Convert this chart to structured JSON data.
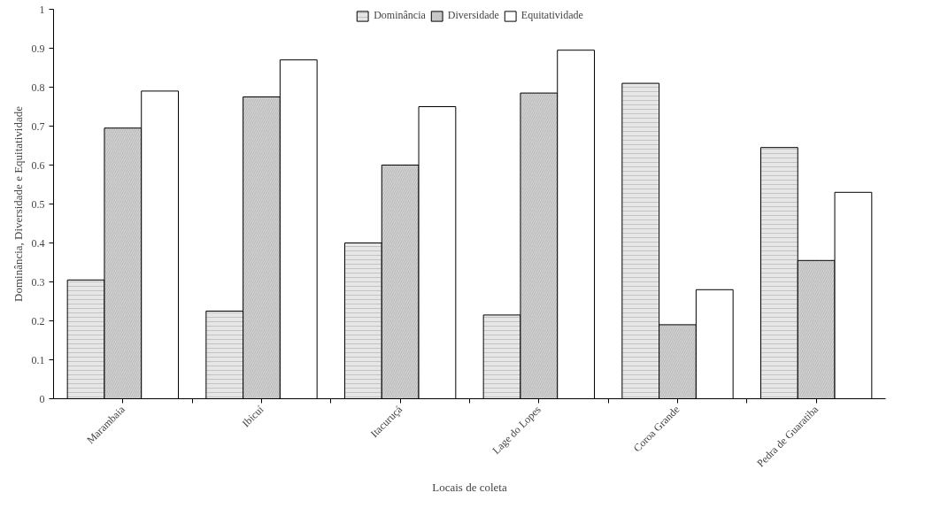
{
  "chart_data": {
    "type": "bar",
    "xlabel": "Locais de coleta",
    "ylabel": "Dominância, Diversidade e Equitatividade",
    "categories": [
      "Marambaia",
      "Ibicuí",
      "Itacuruçá",
      "Lage do Lopes",
      "Coroa Grande",
      "Pedra de Guaratiba"
    ],
    "series": [
      {
        "name": "Dominância",
        "color": "#e6e6e6",
        "values": [
          0.305,
          0.225,
          0.4,
          0.215,
          0.81,
          0.645
        ]
      },
      {
        "name": "Diversidade",
        "color": "#d0d0d0",
        "values": [
          0.695,
          0.775,
          0.6,
          0.785,
          0.19,
          0.355
        ]
      },
      {
        "name": "Equitatividade",
        "color": "#ffffff",
        "values": [
          0.79,
          0.87,
          0.75,
          0.895,
          0.28,
          0.53
        ]
      }
    ],
    "ylim": [
      0,
      1
    ],
    "yticks": [
      0,
      0.1,
      0.2,
      0.3,
      0.4,
      0.5,
      0.6,
      0.7,
      0.8,
      0.9,
      1
    ],
    "grid": false,
    "legend": "top"
  }
}
